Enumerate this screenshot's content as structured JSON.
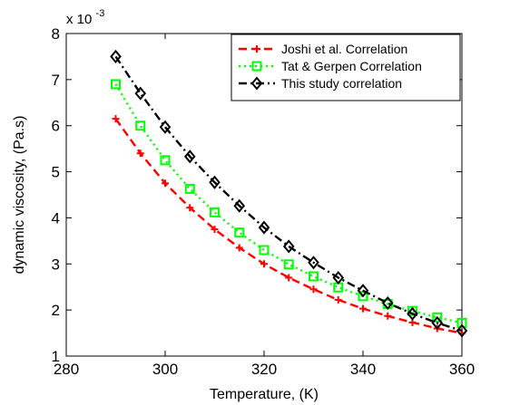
{
  "chart_data": {
    "type": "line",
    "xlabel": "Temperature, (K)",
    "ylabel": "dynamic viscosity, (Pa.s)",
    "xlim": [
      280,
      360
    ],
    "ylim": [
      1,
      8
    ],
    "xticks": [
      "280",
      "300",
      "320",
      "340",
      "360"
    ],
    "yticks": [
      "1",
      "2",
      "3",
      "4",
      "5",
      "6",
      "7",
      "8"
    ],
    "y_multiplier": "x 10",
    "y_multiplier_exponent": "-3",
    "legend_position": "top-right",
    "grid": false,
    "x": [
      290,
      295,
      300,
      305,
      310,
      315,
      320,
      325,
      330,
      335,
      340,
      345,
      350,
      355,
      360
    ],
    "series": [
      {
        "name": "Joshi et al. Correlation",
        "color": "#ff0000",
        "line_style": "dashed",
        "marker": "plus",
        "values": [
          6.15,
          5.4,
          4.75,
          4.22,
          3.75,
          3.35,
          3.0,
          2.7,
          2.45,
          2.22,
          2.03,
          1.87,
          1.73,
          1.6,
          1.5
        ]
      },
      {
        "name": "Tat & Gerpen Correlation",
        "color": "#00ff00",
        "line_style": "dotted",
        "marker": "square",
        "values": [
          6.9,
          6.0,
          5.25,
          4.63,
          4.12,
          3.68,
          3.3,
          2.99,
          2.73,
          2.49,
          2.3,
          2.13,
          1.98,
          1.84,
          1.72
        ]
      },
      {
        "name": "This study correlation",
        "color": "#000000",
        "line_style": "dash-dot",
        "marker": "diamond",
        "values": [
          7.5,
          6.7,
          5.97,
          5.33,
          4.77,
          4.26,
          3.79,
          3.38,
          3.03,
          2.7,
          2.42,
          2.15,
          1.92,
          1.72,
          1.55
        ]
      }
    ]
  }
}
